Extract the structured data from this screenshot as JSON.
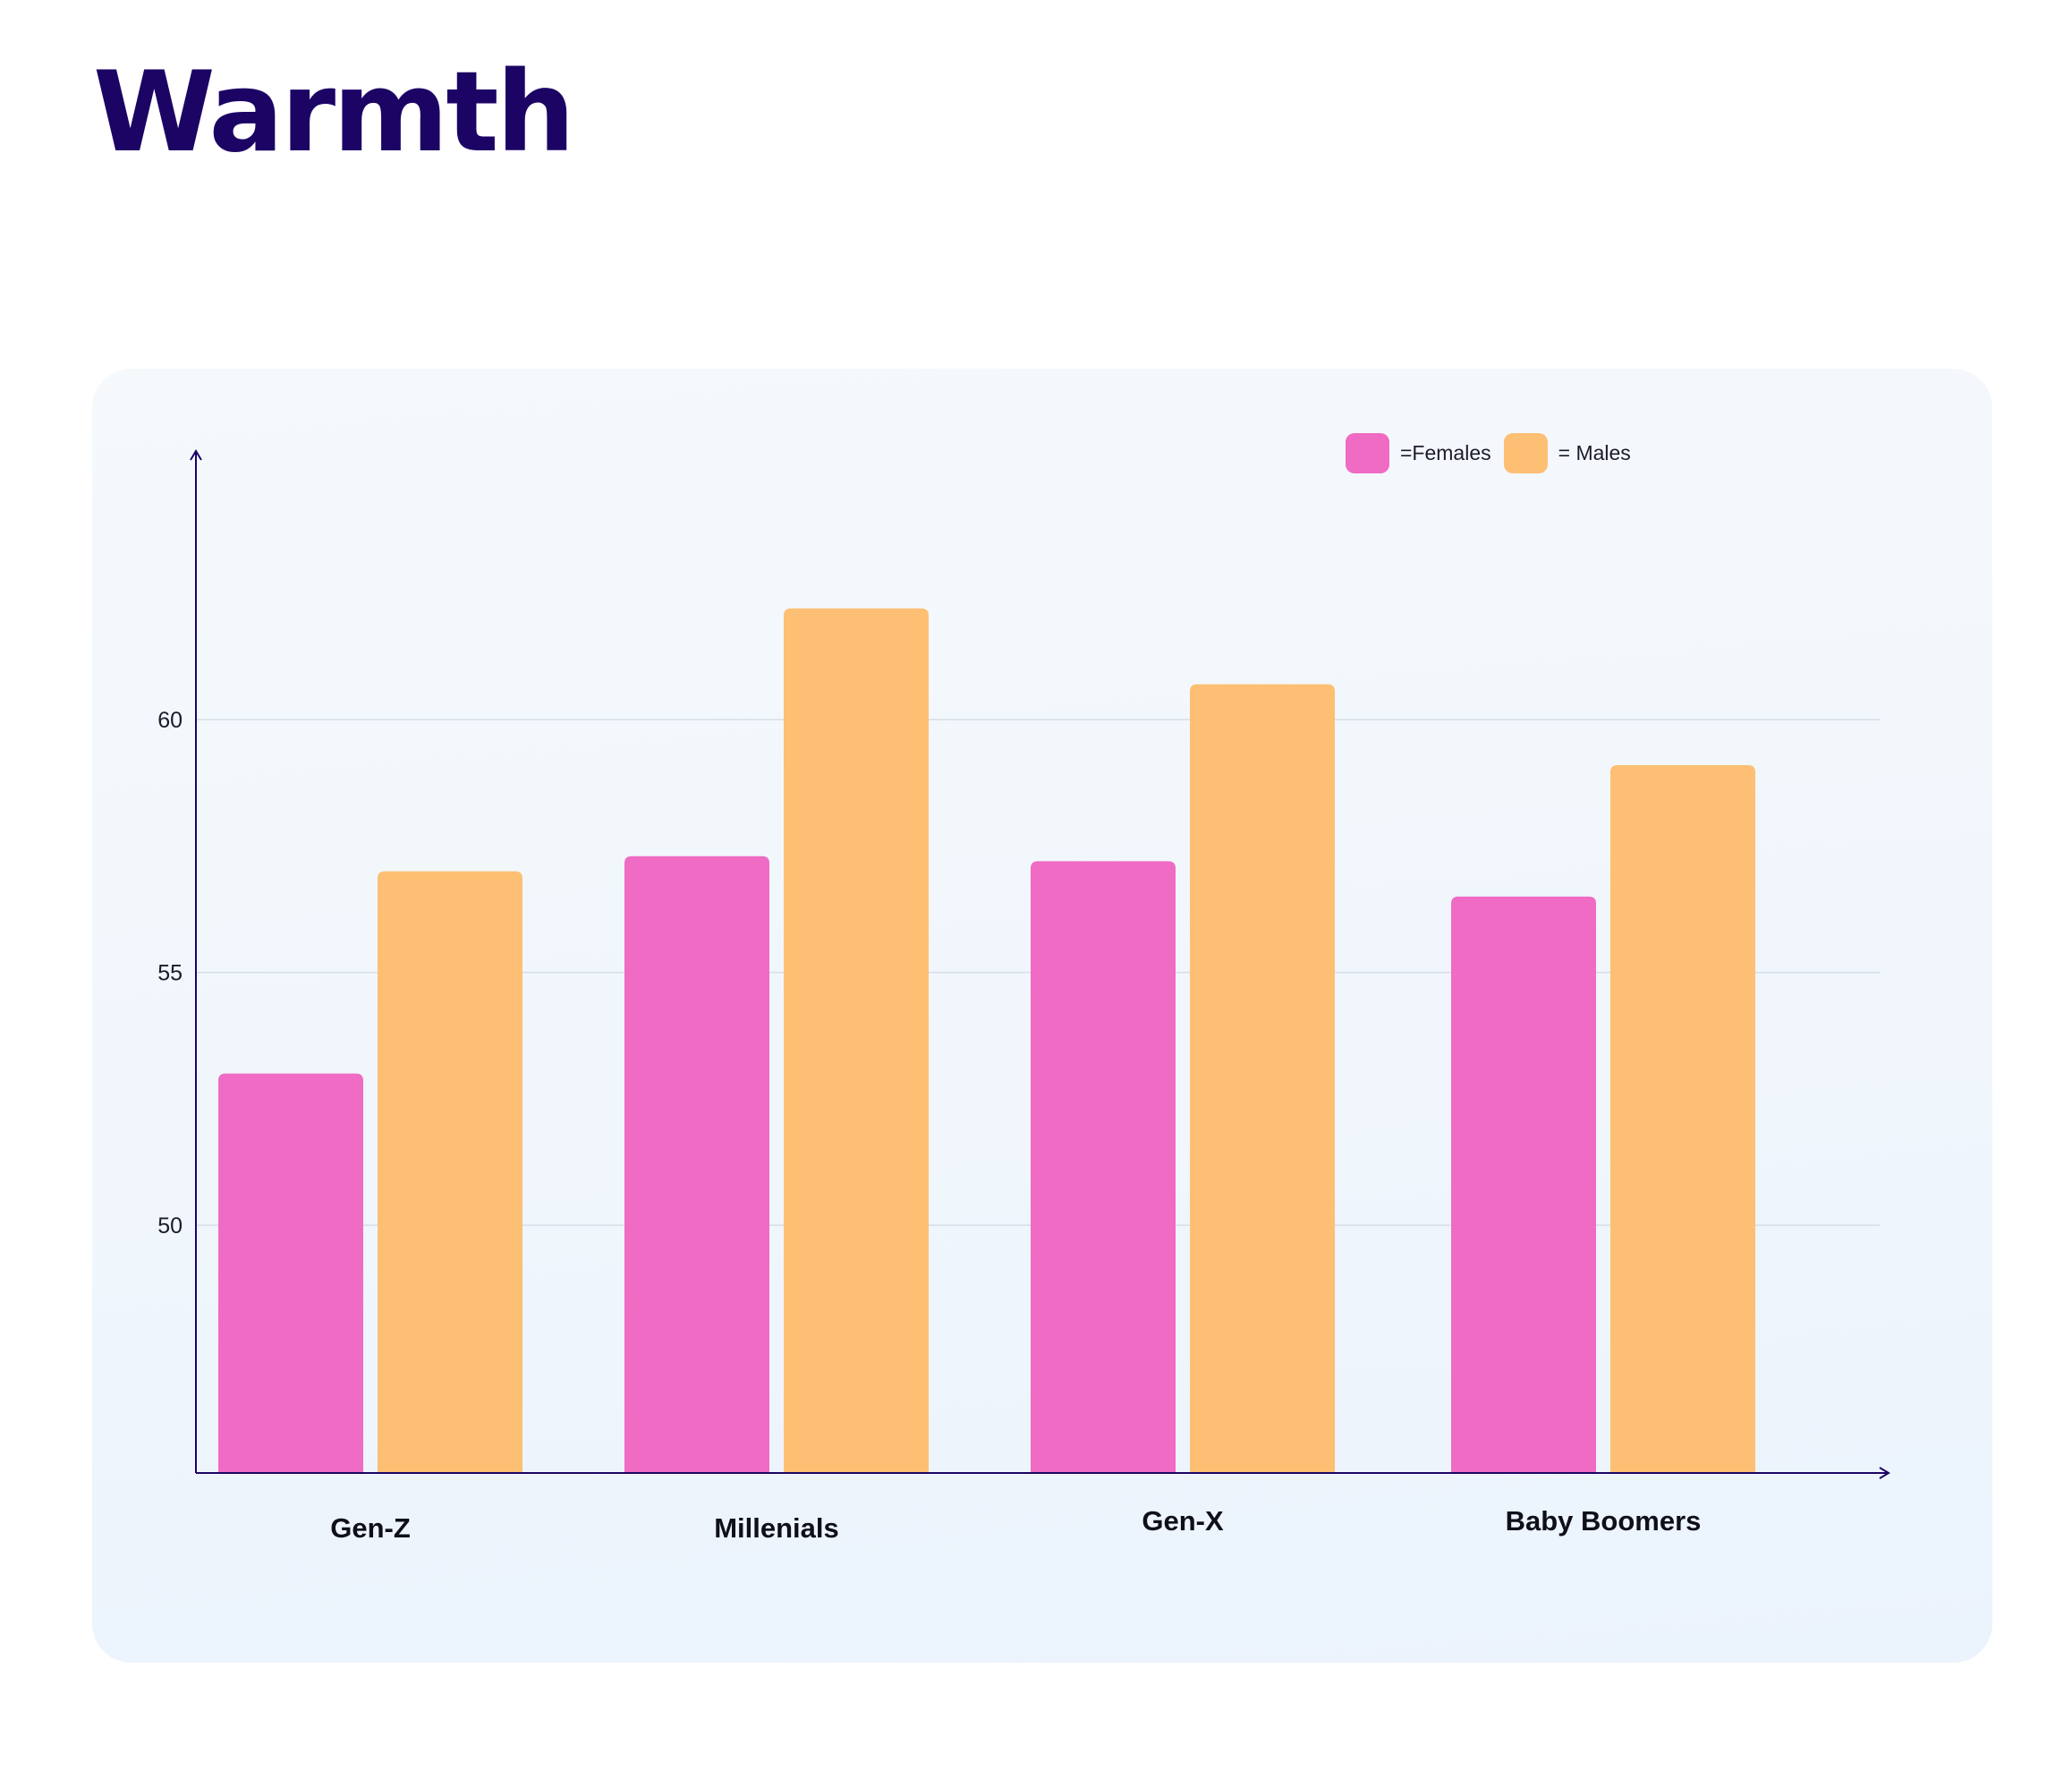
{
  "title": "Warmth",
  "colors": {
    "title": "#1c0465",
    "axis": "#1c0465",
    "grid": "#d6dde6",
    "females": "#ef6bc4",
    "males": "#fdbf74"
  },
  "legend": {
    "females_label": "=Females",
    "males_label": "= Males"
  },
  "chart_data": {
    "type": "bar",
    "title": "Warmth",
    "xlabel": "",
    "ylabel": "",
    "categories": [
      "Gen-Z",
      "Millenials",
      "Gen-X",
      "Baby Boomers"
    ],
    "series": [
      {
        "name": "Females",
        "values": [
          53.0,
          57.3,
          57.2,
          56.5
        ]
      },
      {
        "name": "Males",
        "values": [
          57.0,
          62.2,
          60.7,
          59.1
        ]
      }
    ],
    "yticks": [
      50,
      55,
      60
    ],
    "ylim": [
      45.1,
      65.1
    ],
    "grid": true,
    "legend_position": "top-right"
  }
}
